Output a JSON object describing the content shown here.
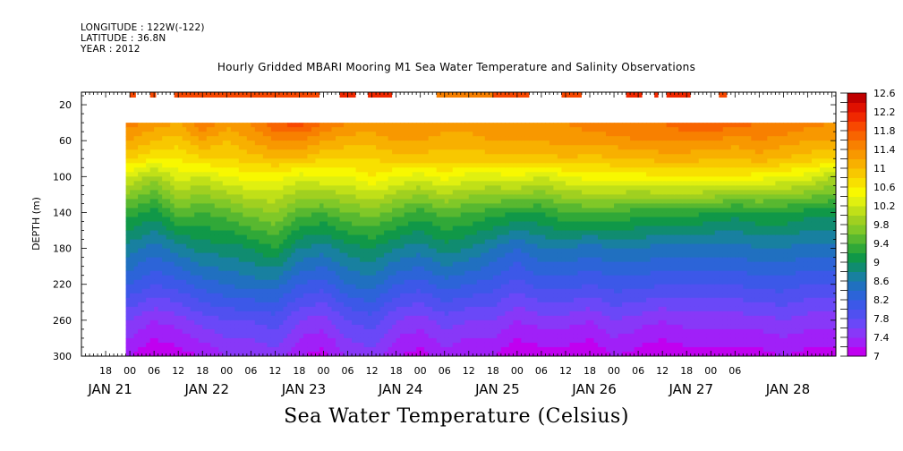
{
  "header": {
    "longitude": "LONGITUDE : 122W(-122)",
    "latitude": "LATITUDE : 36.8N",
    "year": "YEAR : 2012"
  },
  "chart_data": {
    "type": "heatmap",
    "title": "Hourly Gridded MBARI Mooring M1 Sea Water Temperature and Salinity Observations",
    "xlabel": "Sea Water Temperature (Celsius)",
    "ylabel": "DEPTH (m)",
    "x_start": "2012-01-20T12:00",
    "x_end": "2012-01-28T07:00",
    "data_start": "2012-01-20T23:00",
    "data_end": "2012-01-28T07:00",
    "x_tick_labels": [
      "18",
      "00",
      "06",
      "12",
      "18",
      "00",
      "06",
      "12",
      "18",
      "00",
      "06",
      "12",
      "18",
      "00",
      "06",
      "12",
      "18",
      "00",
      "06",
      "12",
      "18",
      "00",
      "06",
      "12",
      "18",
      "00",
      "06"
    ],
    "x_date_labels": [
      "JAN 21",
      "JAN 22",
      "JAN 23",
      "JAN 24",
      "JAN 25",
      "JAN 26",
      "JAN 27",
      "JAN 28"
    ],
    "ylim": [
      300,
      6
    ],
    "y_ticks": [
      20,
      60,
      100,
      140,
      180,
      220,
      260,
      300
    ],
    "colorbar": {
      "levels": [
        7,
        7.2,
        7.4,
        7.6,
        7.8,
        8,
        8.2,
        8.4,
        8.6,
        8.8,
        9,
        9.2,
        9.4,
        9.6,
        9.8,
        10,
        10.2,
        10.4,
        10.6,
        10.8,
        11,
        11.2,
        11.4,
        11.6,
        11.8,
        12,
        12.2,
        12.4,
        12.6
      ],
      "labels": [
        "7",
        "7.4",
        "7.8",
        "8.2",
        "8.6",
        "9",
        "9.4",
        "9.8",
        "10.2",
        "10.6",
        "11",
        "11.4",
        "11.8",
        "12.2",
        "12.6"
      ],
      "colors": [
        "#c000f0",
        "#a020f8",
        "#8838f8",
        "#6a48f8",
        "#5050f0",
        "#3c58e8",
        "#2c64d8",
        "#2070c0",
        "#1880a0",
        "#108c70",
        "#109848",
        "#30a838",
        "#58b830",
        "#80c828",
        "#a0d020",
        "#c0e018",
        "#e0f010",
        "#f8f800",
        "#f8e000",
        "#f8c800",
        "#f8b000",
        "#f89800",
        "#f88000",
        "#f86400",
        "#f84800",
        "#f02800",
        "#e01000",
        "#c00000"
      ]
    },
    "surface_samples_20m": [
      {
        "start": "2012-01-21T00:00",
        "end": "2012-01-21T01:30",
        "value": 11.8
      },
      {
        "start": "2012-01-21T05:00",
        "end": "2012-01-21T06:30",
        "value": 11.8
      },
      {
        "start": "2012-01-21T11:00",
        "end": "2012-01-22T23:00",
        "value": 11.9
      },
      {
        "start": "2012-01-23T04:00",
        "end": "2012-01-23T08:00",
        "value": 12.0
      },
      {
        "start": "2012-01-23T11:00",
        "end": "2012-01-23T17:00",
        "value": 12.1
      },
      {
        "start": "2012-01-24T04:00",
        "end": "2012-01-24T18:00",
        "value": 11.5
      },
      {
        "start": "2012-01-24T18:00",
        "end": "2012-01-25T03:00",
        "value": 11.8
      },
      {
        "start": "2012-01-25T11:00",
        "end": "2012-01-25T16:00",
        "value": 11.9
      },
      {
        "start": "2012-01-26T03:00",
        "end": "2012-01-26T07:00",
        "value": 12.0
      },
      {
        "start": "2012-01-26T10:00",
        "end": "2012-01-26T11:00",
        "value": 12.0
      },
      {
        "start": "2012-01-26T13:00",
        "end": "2012-01-26T19:00",
        "value": 12.0
      },
      {
        "start": "2012-01-27T02:00",
        "end": "2012-01-27T04:00",
        "value": 11.9
      }
    ],
    "profile_timeseries": {
      "times": [
        "2012-01-21T00:00",
        "2012-01-21T06:00",
        "2012-01-21T12:00",
        "2012-01-21T18:00",
        "2012-01-22T00:00",
        "2012-01-22T06:00",
        "2012-01-22T12:00",
        "2012-01-22T18:00",
        "2012-01-23T00:00",
        "2012-01-23T06:00",
        "2012-01-23T12:00",
        "2012-01-23T18:00",
        "2012-01-24T00:00",
        "2012-01-24T06:00",
        "2012-01-24T12:00",
        "2012-01-24T18:00",
        "2012-01-25T00:00",
        "2012-01-25T06:00",
        "2012-01-25T12:00",
        "2012-01-25T18:00",
        "2012-01-26T00:00",
        "2012-01-26T06:00",
        "2012-01-26T12:00",
        "2012-01-26T18:00",
        "2012-01-27T00:00",
        "2012-01-27T06:00",
        "2012-01-27T12:00",
        "2012-01-27T18:00",
        "2012-01-28T00:00",
        "2012-01-28T06:00"
      ],
      "depth_m": [
        40,
        60,
        80,
        100,
        140,
        180,
        220,
        260,
        300
      ],
      "temperature_c": [
        [
          11.5,
          11.3,
          11.2,
          11.6,
          11.3,
          11.4,
          11.8,
          11.9,
          11.6,
          11.4,
          11.3,
          11.4,
          11.4,
          11.3,
          11.3,
          11.4,
          11.4,
          11.4,
          11.4,
          11.5,
          11.6,
          11.6,
          11.6,
          11.8,
          11.8,
          11.7,
          11.6,
          11.6,
          11.5,
          11.4
        ],
        [
          11.2,
          11.0,
          10.9,
          11.2,
          11.0,
          11.2,
          11.4,
          11.4,
          11.2,
          11.1,
          11.1,
          11.2,
          11.2,
          11.1,
          11.1,
          11.2,
          11.2,
          11.2,
          11.3,
          11.3,
          11.3,
          11.4,
          11.4,
          11.4,
          11.4,
          11.3,
          11.4,
          11.3,
          11.2,
          11.2
        ],
        [
          10.8,
          10.6,
          10.6,
          10.8,
          10.8,
          10.9,
          11.0,
          11.0,
          10.8,
          10.8,
          10.8,
          10.9,
          10.9,
          10.9,
          10.9,
          10.9,
          10.9,
          10.9,
          11.0,
          10.9,
          11.0,
          11.0,
          11.1,
          11.1,
          11.0,
          11.0,
          11.1,
          11.0,
          10.9,
          10.8
        ],
        [
          10.2,
          9.9,
          10.3,
          10.2,
          10.4,
          10.5,
          10.5,
          10.3,
          10.4,
          10.4,
          10.6,
          10.4,
          10.3,
          10.5,
          10.3,
          10.3,
          10.4,
          10.2,
          10.4,
          10.5,
          10.5,
          10.5,
          10.6,
          10.6,
          10.6,
          10.6,
          10.5,
          10.4,
          10.3,
          10.0
        ],
        [
          9.3,
          9.1,
          9.5,
          9.4,
          9.5,
          9.7,
          9.8,
          9.5,
          9.4,
          9.6,
          9.7,
          9.5,
          9.3,
          9.5,
          9.4,
          9.3,
          9.2,
          9.2,
          9.4,
          9.4,
          9.4,
          9.3,
          9.3,
          9.3,
          9.2,
          9.1,
          9.2,
          9.2,
          9.1,
          9.1
        ],
        [
          8.7,
          8.5,
          8.7,
          8.9,
          8.9,
          9.0,
          9.2,
          8.8,
          8.7,
          8.9,
          9.0,
          8.8,
          8.7,
          8.9,
          8.8,
          8.6,
          8.4,
          8.6,
          8.6,
          8.5,
          8.6,
          8.6,
          8.5,
          8.5,
          8.5,
          8.5,
          8.6,
          8.6,
          8.5,
          8.5
        ],
        [
          8.2,
          8.0,
          8.1,
          8.3,
          8.4,
          8.5,
          8.5,
          8.2,
          8.1,
          8.4,
          8.5,
          8.2,
          8.1,
          8.3,
          8.2,
          8.1,
          7.9,
          8.1,
          8.1,
          8.0,
          8.1,
          8.1,
          8.0,
          8.0,
          8.0,
          8.0,
          8.1,
          8.1,
          8.0,
          8.0
        ],
        [
          7.6,
          7.4,
          7.5,
          7.7,
          7.8,
          7.8,
          7.9,
          7.6,
          7.5,
          7.8,
          7.9,
          7.6,
          7.5,
          7.7,
          7.6,
          7.6,
          7.4,
          7.5,
          7.5,
          7.4,
          7.6,
          7.5,
          7.4,
          7.5,
          7.5,
          7.5,
          7.5,
          7.6,
          7.5,
          7.5
        ],
        [
          7.2,
          7.0,
          7.1,
          7.2,
          7.4,
          7.4,
          7.5,
          7.2,
          7.1,
          7.4,
          7.5,
          7.2,
          7.1,
          7.3,
          7.2,
          7.2,
          7.0,
          7.1,
          7.1,
          7.0,
          7.2,
          7.1,
          7.0,
          7.1,
          7.1,
          7.1,
          7.1,
          7.2,
          7.1,
          7.1
        ]
      ]
    }
  }
}
